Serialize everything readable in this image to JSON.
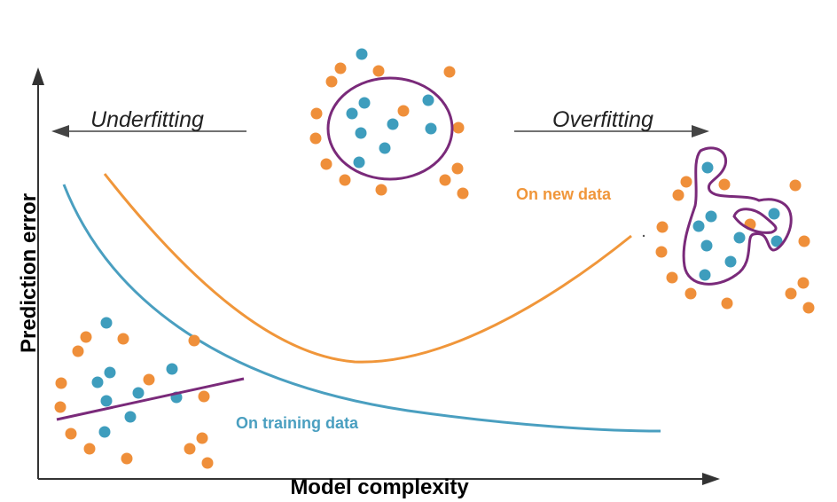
{
  "axes": {
    "x_label": "Model complexity",
    "y_label": "Prediction error"
  },
  "regions": {
    "underfitting_label": "Underfitting",
    "overfitting_label": "Overfitting"
  },
  "curves": {
    "training_label": "On training data",
    "new_data_label": "On new data"
  },
  "colors": {
    "training": "#4a9fc0",
    "new_data": "#f0963a",
    "point_blue": "#3e9dbd",
    "point_orange": "#ef8f3a",
    "boundary": "#7a2a7a",
    "axis": "#333333"
  }
}
